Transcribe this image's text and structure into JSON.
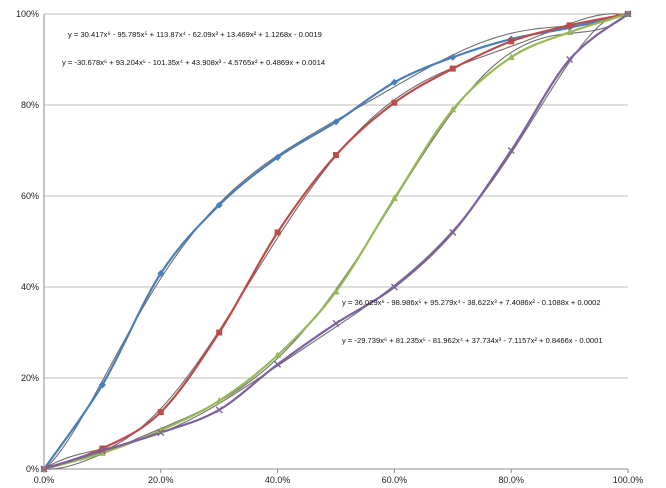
{
  "chart_data": {
    "type": "line",
    "title": "",
    "xlabel": "",
    "ylabel": "",
    "xlim": [
      0,
      100
    ],
    "ylim": [
      0,
      100
    ],
    "x_ticks": [
      "0.0%",
      "20.0%",
      "40.0%",
      "60.0%",
      "80.0%",
      "100.0%"
    ],
    "y_ticks": [
      "0%",
      "20%",
      "40%",
      "60%",
      "80%",
      "100%"
    ],
    "grid": "horizontal",
    "legend": "none",
    "x": [
      0,
      10,
      20,
      30,
      40,
      50,
      60,
      70,
      80,
      90,
      100
    ],
    "series": [
      {
        "color": "#4a7ebb",
        "marker": "diamond",
        "trend_color": "#6f6f6f",
        "values": [
          0,
          18.5,
          43,
          58,
          68.5,
          76.3,
          85,
          90.5,
          94.5,
          97,
          100
        ]
      },
      {
        "color": "#be4b48",
        "marker": "square",
        "trend_color": "#6f6f6f",
        "values": [
          0,
          4.5,
          12.5,
          30,
          52,
          69,
          80.5,
          88,
          94,
          97.5,
          100
        ]
      },
      {
        "color": "#98b954",
        "marker": "triangle",
        "trend_color": "#6f6f6f",
        "values": [
          0,
          3.5,
          8.5,
          15,
          25,
          39,
          59.5,
          79,
          90.5,
          96,
          100
        ]
      },
      {
        "color": "#7d60a0",
        "marker": "x",
        "trend_color": "#6f6f6f",
        "values": [
          0,
          4,
          8,
          13,
          23,
          32,
          40,
          52,
          70,
          90,
          100
        ]
      }
    ],
    "annotations": [
      "y = 30.417x⁶ - 95.785x⁵ + 113.87x⁴ - 62.09x³ + 13.469x² + 1.1268x - 0.0019",
      "y = -30.678x⁶ + 93.204x⁵ - 101.35x⁴ + 43.908x³ - 4.5765x² + 0.4869x + 0.0014",
      "y = 36.029x⁶ - 98.986x⁵ + 95.279x⁴ - 38.622x³ + 7.4086x² - 0.1088x + 0.0002",
      "y = -29.739x⁶ + 81.235x⁵ - 81.962x⁴ + 37.734x³ - 7.1157x² + 0.8466x - 0.0001"
    ],
    "trendlines": [
      [
        -0.0019,
        1.1268,
        13.469,
        -62.09,
        113.87,
        -95.785,
        30.417
      ],
      [
        0.0014,
        0.4869,
        -4.5765,
        43.908,
        -101.35,
        93.204,
        -30.678
      ],
      [
        0.0002,
        -0.1088,
        7.4086,
        -38.622,
        95.279,
        -98.986,
        36.029
      ],
      [
        -0.0001,
        0.8466,
        -7.1157,
        37.734,
        -81.962,
        81.235,
        -29.739
      ]
    ]
  }
}
